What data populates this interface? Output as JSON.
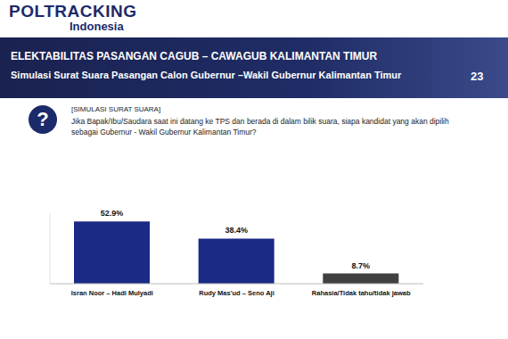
{
  "header": {
    "logo": "POLTRACKING",
    "logo_sub": "Indonesia",
    "page": "23"
  },
  "question": {
    "icon": "?",
    "tag": "[SIMULASI SURAT SUARA]",
    "text": "Jika Bapak/Ibu/Saudara saat ini datang ke TPS dan berada di dalam bilik suara, siapa kandidat yang akan dipilih sebagai Gubernur - Wakil Gubernur Kalimantan Timur?"
  },
  "chart_data": {
    "type": "bar",
    "title": "ELEKTABILITAS PASANGAN CAGUB – CAWAGUB KALIMANTAN TIMUR",
    "subtitle": "Simulasi Surat Suara Pasangan Calon Gubernur –Wakil Gubernur Kalimantan Timur",
    "categories": [
      "Isran Noor – Hadi Mulyadi",
      "Rudy Mas'ud – Seno Aji",
      "Rahasia/Tidak tahu/tidak jawab"
    ],
    "values": [
      52.9,
      38.4,
      8.7
    ],
    "value_labels": [
      "52.9%",
      "38.4%",
      "8.7%"
    ],
    "colors": [
      "#1b2a85",
      "#1b2a85",
      "#404040"
    ],
    "ylim": [
      0,
      60
    ],
    "grid": false,
    "data_labels": true,
    "tick_labels": "x"
  }
}
